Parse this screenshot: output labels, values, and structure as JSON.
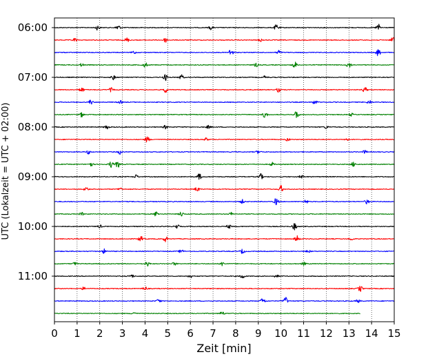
{
  "chart_data": {
    "type": "line",
    "title": "",
    "xlabel": "Zeit  [min]",
    "ylabel": "UTC (Lokalzeit = UTC + 02:00)",
    "xlim": [
      0,
      15
    ],
    "x_ticks": [
      0,
      1,
      2,
      3,
      4,
      5,
      6,
      7,
      8,
      9,
      10,
      11,
      12,
      13,
      14,
      15
    ],
    "y_ticks": [
      "06:00",
      "07:00",
      "08:00",
      "09:00",
      "10:00",
      "11:00"
    ],
    "grid": "vertical dotted at minute ticks",
    "color_cycle": [
      "#000000",
      "#ff0000",
      "#0000ff",
      "#008000"
    ],
    "traces": [
      {
        "start": "06:00",
        "bursts": [
          [
            1.9,
            0.6
          ],
          [
            2.8,
            0.8
          ],
          [
            6.9,
            0.5
          ],
          [
            9.8,
            0.8
          ],
          [
            14.3,
            0.9
          ]
        ]
      },
      {
        "start": "06:15",
        "bursts": [
          [
            0.9,
            0.5
          ],
          [
            3.2,
            0.6
          ],
          [
            4.9,
            0.6
          ],
          [
            9.1,
            0.4
          ],
          [
            14.95,
            1.0
          ]
        ]
      },
      {
        "start": "06:30",
        "bursts": [
          [
            3.5,
            0.4
          ],
          [
            7.8,
            1.0
          ],
          [
            9.9,
            0.6
          ],
          [
            14.3,
            1.0
          ]
        ]
      },
      {
        "start": "06:45",
        "bursts": [
          [
            1.2,
            0.4
          ],
          [
            4.0,
            0.7
          ],
          [
            8.9,
            0.5
          ],
          [
            10.6,
            0.9
          ],
          [
            13.0,
            0.9
          ]
        ]
      },
      {
        "start": "07:00",
        "bursts": [
          [
            2.6,
            0.6
          ],
          [
            4.9,
            0.8
          ],
          [
            5.6,
            0.7
          ],
          [
            9.3,
            0.4
          ]
        ]
      },
      {
        "start": "07:15",
        "bursts": [
          [
            1.2,
            0.7
          ],
          [
            2.5,
            0.5
          ],
          [
            4.9,
            0.7
          ],
          [
            9.9,
            0.6
          ],
          [
            13.7,
            0.7
          ]
        ]
      },
      {
        "start": "07:30",
        "bursts": [
          [
            1.6,
            0.6
          ],
          [
            2.9,
            0.4
          ],
          [
            11.5,
            0.6
          ],
          [
            13.9,
            0.5
          ]
        ]
      },
      {
        "start": "07:45",
        "bursts": [
          [
            1.2,
            0.6
          ],
          [
            9.3,
            0.9
          ],
          [
            10.7,
            1.0
          ],
          [
            13.1,
            0.4
          ]
        ]
      },
      {
        "start": "08:00",
        "bursts": [
          [
            2.3,
            0.6
          ],
          [
            4.9,
            0.5
          ],
          [
            6.8,
            0.4
          ],
          [
            12.0,
            0.4
          ]
        ]
      },
      {
        "start": "08:15",
        "bursts": [
          [
            4.1,
            0.8
          ],
          [
            6.7,
            0.4
          ],
          [
            10.3,
            0.4
          ],
          [
            12.9,
            0.4
          ]
        ]
      },
      {
        "start": "08:30",
        "bursts": [
          [
            1.5,
            0.5
          ],
          [
            2.9,
            0.6
          ],
          [
            9.0,
            0.4
          ],
          [
            13.7,
            0.4
          ]
        ]
      },
      {
        "start": "08:45",
        "bursts": [
          [
            1.6,
            0.6
          ],
          [
            2.5,
            0.8
          ],
          [
            2.8,
            0.9
          ],
          [
            9.6,
            0.5
          ],
          [
            13.2,
            0.6
          ]
        ]
      },
      {
        "start": "09:00",
        "bursts": [
          [
            3.6,
            0.5
          ],
          [
            6.4,
            0.8
          ],
          [
            9.1,
            0.8
          ],
          [
            10.9,
            0.5
          ]
        ]
      },
      {
        "start": "09:15",
        "bursts": [
          [
            1.4,
            0.6
          ],
          [
            2.9,
            0.4
          ],
          [
            6.3,
            0.6
          ],
          [
            10.0,
            0.9
          ]
        ]
      },
      {
        "start": "09:30",
        "bursts": [
          [
            8.3,
            0.5
          ],
          [
            9.8,
            1.0
          ],
          [
            11.1,
            0.5
          ],
          [
            13.8,
            0.6
          ]
        ]
      },
      {
        "start": "09:45",
        "bursts": [
          [
            1.2,
            0.4
          ],
          [
            4.5,
            0.7
          ],
          [
            5.6,
            0.6
          ],
          [
            7.8,
            0.4
          ]
        ]
      },
      {
        "start": "10:00",
        "bursts": [
          [
            2.0,
            0.4
          ],
          [
            5.4,
            0.6
          ],
          [
            7.7,
            0.5
          ],
          [
            10.6,
            0.9
          ]
        ]
      },
      {
        "start": "10:15",
        "bursts": [
          [
            3.8,
            0.8
          ],
          [
            4.9,
            0.7
          ],
          [
            10.7,
            0.9
          ],
          [
            13.1,
            0.4
          ]
        ]
      },
      {
        "start": "10:30",
        "bursts": [
          [
            2.2,
            0.6
          ],
          [
            5.6,
            0.5
          ],
          [
            8.3,
            0.6
          ],
          [
            11.2,
            0.4
          ]
        ]
      },
      {
        "start": "10:45",
        "bursts": [
          [
            0.9,
            0.4
          ],
          [
            4.1,
            0.6
          ],
          [
            5.3,
            0.4
          ],
          [
            7.4,
            0.5
          ],
          [
            11.0,
            0.4
          ]
        ]
      },
      {
        "start": "11:00",
        "bursts": [
          [
            3.4,
            0.5
          ],
          [
            6.0,
            0.4
          ],
          [
            8.3,
            0.7
          ],
          [
            9.8,
            0.4
          ]
        ]
      },
      {
        "start": "11:15",
        "bursts": [
          [
            1.3,
            0.4
          ],
          [
            4.0,
            0.5
          ],
          [
            13.5,
            0.8
          ]
        ]
      },
      {
        "start": "11:30",
        "bursts": [
          [
            4.6,
            0.5
          ],
          [
            9.2,
            0.8
          ],
          [
            10.2,
            1.0
          ],
          [
            13.4,
            0.4
          ]
        ]
      },
      {
        "start": "11:45",
        "end_x": 13.5,
        "bursts": [
          [
            3.5,
            0.4
          ],
          [
            7.4,
            0.5
          ]
        ]
      }
    ]
  }
}
